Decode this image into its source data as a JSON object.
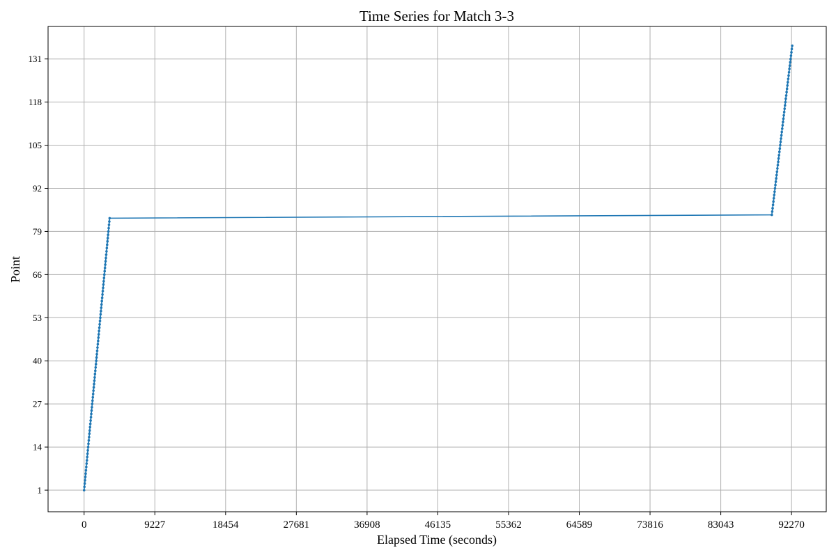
{
  "chart_data": {
    "type": "line",
    "title": "Time Series for Match 3-3",
    "xlabel": "Elapsed Time (seconds)",
    "ylabel": "Point",
    "xlim": [
      -4700,
      96800
    ],
    "ylim": [
      -5.5,
      140.8
    ],
    "xticks": [
      0,
      9227,
      18454,
      27681,
      36908,
      46135,
      55362,
      64589,
      73816,
      83043,
      92270
    ],
    "xtick_labels": [
      "0",
      "9227",
      "18454",
      "27681",
      "36908",
      "46135",
      "55362",
      "64589",
      "73816",
      "83043",
      "92270"
    ],
    "yticks": [
      1,
      14,
      27,
      40,
      53,
      66,
      79,
      92,
      105,
      118,
      131
    ],
    "ytick_labels": [
      "1",
      "14",
      "27",
      "40",
      "53",
      "66",
      "79",
      "92",
      "105",
      "118",
      "131"
    ],
    "grid": true,
    "color": "#1f77b4",
    "series": [
      {
        "segments": [
          {
            "x_start": 0,
            "x_end": 3330,
            "y_start": 1,
            "y_end": 83
          },
          {
            "x_start": 89700,
            "x_end": 92360,
            "y_start": 84,
            "y_end": 135
          }
        ],
        "connect_segments": true
      }
    ]
  }
}
